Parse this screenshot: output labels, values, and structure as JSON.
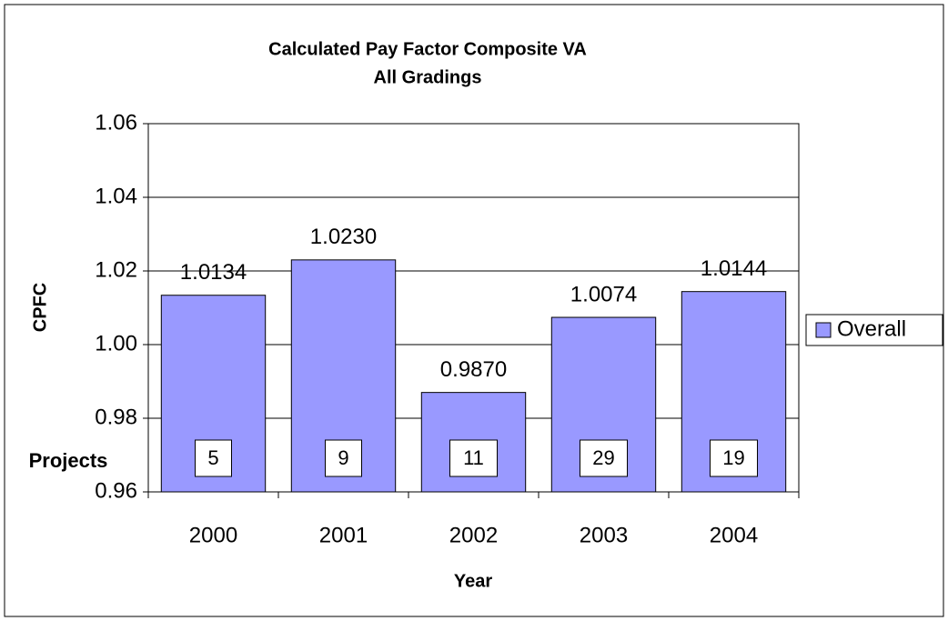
{
  "chart_data": {
    "type": "bar",
    "title": [
      "Calculated Pay Factor Composite VA",
      "All Gradings"
    ],
    "xlabel": "Year",
    "ylabel": "CPFC",
    "categories": [
      "2000",
      "2001",
      "2002",
      "2003",
      "2004"
    ],
    "series": [
      {
        "name": "Overall",
        "color": "#9999ff",
        "values": [
          1.0134,
          1.023,
          0.987,
          1.0074,
          1.0144
        ],
        "value_labels": [
          "1.0134",
          "1.0230",
          "0.9870",
          "1.0074",
          "1.0144"
        ]
      }
    ],
    "projects": {
      "label": "Projects",
      "values": [
        5,
        9,
        11,
        29,
        19
      ]
    },
    "ylim": [
      0.96,
      1.06
    ],
    "yticks": [
      0.96,
      0.98,
      {
        "value": 1.0,
        "label": "1.00"
      },
      1.02,
      1.04,
      1.06
    ],
    "grid": true,
    "legend": "right"
  }
}
